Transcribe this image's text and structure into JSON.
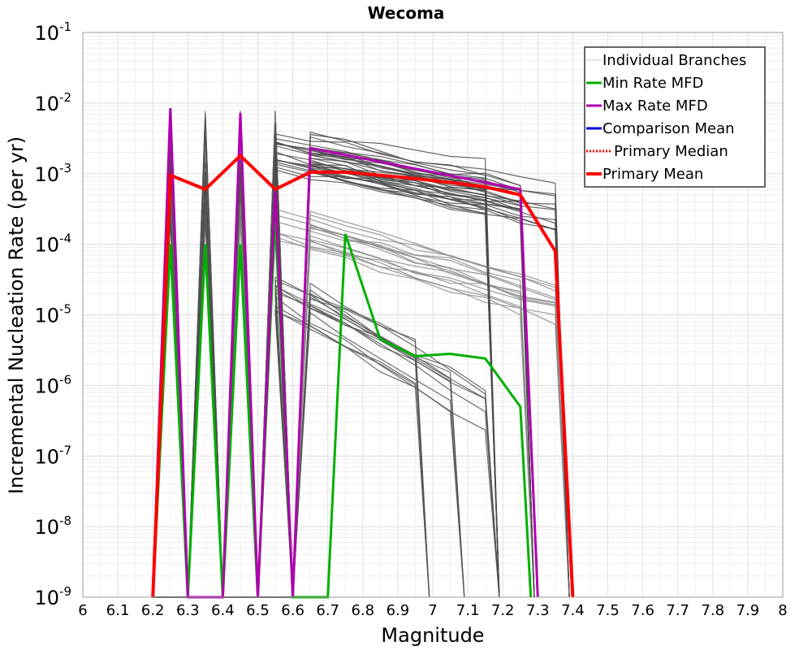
{
  "chart_data": {
    "type": "line",
    "title": "Wecoma",
    "xlabel": "Magnitude",
    "ylabel": "Incremental Nucleation Rate (per yr)",
    "xlim": [
      6,
      8
    ],
    "ylim_log10": [
      -9,
      -1
    ],
    "y_scale": "log",
    "grid": true,
    "legend_position": "top-right",
    "x_ticks": [
      "6",
      "6.1",
      "6.2",
      "6.3",
      "6.4",
      "6.5",
      "6.6",
      "6.7",
      "6.8",
      "6.9",
      "7",
      "7.1",
      "7.2",
      "7.3",
      "7.4",
      "7.5",
      "7.6",
      "7.7",
      "7.8",
      "7.9",
      "8"
    ],
    "y_ticks": [
      {
        "base": "10",
        "exp": "-1",
        "value": 0.1
      },
      {
        "base": "10",
        "exp": "-2",
        "value": 0.01
      },
      {
        "base": "10",
        "exp": "-3",
        "value": 0.001
      },
      {
        "base": "10",
        "exp": "-4",
        "value": 0.0001
      },
      {
        "base": "10",
        "exp": "-5",
        "value": 1e-05
      },
      {
        "base": "10",
        "exp": "-6",
        "value": 1e-06
      },
      {
        "base": "10",
        "exp": "-7",
        "value": 1e-07
      },
      {
        "base": "10",
        "exp": "-8",
        "value": 1e-08
      },
      {
        "base": "10",
        "exp": "-9",
        "value": 1e-09
      }
    ],
    "legend": [
      {
        "label": "Individual Branches",
        "color": "#c8c8c8",
        "style": "thin"
      },
      {
        "label": "Min Rate MFD",
        "color": "#00b000",
        "style": "solid"
      },
      {
        "label": "Max Rate MFD",
        "color": "#b000b0",
        "style": "solid"
      },
      {
        "label": "Comparison Mean",
        "color": "#0000dd",
        "style": "solid"
      },
      {
        "label": "Primary Median",
        "color": "#ff0000",
        "style": "dotted"
      },
      {
        "label": "Primary Mean",
        "color": "#ff0000",
        "style": "thick"
      }
    ],
    "series": [
      {
        "name": "Min Rate MFD",
        "color": "#00b000",
        "width": 3,
        "points": [
          [
            6.2,
            1e-09
          ],
          [
            6.25,
            0.0001
          ],
          [
            6.3,
            1e-09
          ],
          [
            6.35,
            0.0001
          ],
          [
            6.4,
            1e-09
          ],
          [
            6.45,
            0.0001
          ],
          [
            6.5,
            1e-09
          ],
          [
            6.55,
            0.00025
          ],
          [
            6.6,
            1e-09
          ],
          [
            6.7,
            1e-09
          ],
          [
            6.75,
            0.00014
          ],
          [
            6.85,
            4.5e-06
          ],
          [
            6.95,
            2.6e-06
          ],
          [
            7.05,
            2.8e-06
          ],
          [
            7.15,
            2.4e-06
          ],
          [
            7.25,
            5e-07
          ],
          [
            7.28,
            1e-09
          ]
        ]
      },
      {
        "name": "Max Rate MFD",
        "color": "#b000b0",
        "width": 3,
        "points": [
          [
            6.2,
            1e-09
          ],
          [
            6.25,
            0.0085
          ],
          [
            6.3,
            1e-09
          ],
          [
            6.4,
            1e-09
          ],
          [
            6.45,
            0.0072
          ],
          [
            6.5,
            1e-09
          ],
          [
            6.55,
            0.0006
          ],
          [
            6.6,
            1e-09
          ],
          [
            6.65,
            0.0023
          ],
          [
            7.25,
            0.0006
          ],
          [
            7.3,
            1e-09
          ]
        ]
      },
      {
        "name": "Primary Mean",
        "color": "#ff0000",
        "width": 4,
        "points": [
          [
            6.2,
            1e-09
          ],
          [
            6.25,
            0.00095
          ],
          [
            6.35,
            0.0006
          ],
          [
            6.45,
            0.0018
          ],
          [
            6.55,
            0.0006
          ],
          [
            6.65,
            0.00105
          ],
          [
            6.75,
            0.00105
          ],
          [
            6.85,
            0.00095
          ],
          [
            6.95,
            0.00085
          ],
          [
            7.05,
            0.00075
          ],
          [
            7.15,
            0.00065
          ],
          [
            7.25,
            0.0005
          ],
          [
            7.35,
            8e-05
          ],
          [
            7.4,
            1e-09
          ]
        ]
      }
    ]
  }
}
